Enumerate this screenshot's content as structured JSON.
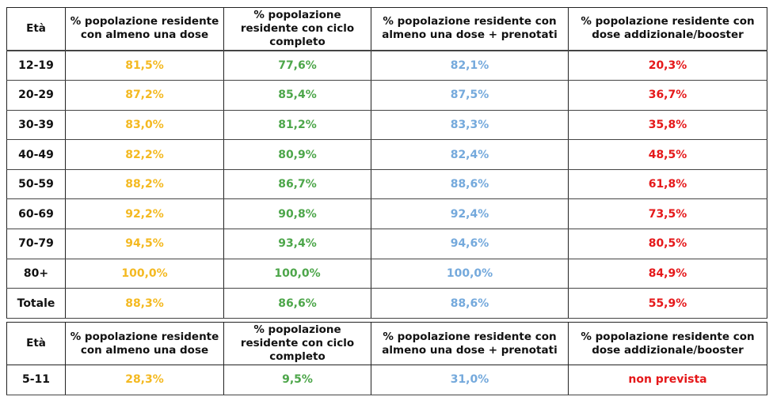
{
  "headers": [
    "Età",
    "% popolazione residente con almeno una dose",
    "% popolazione residente con ciclo completo",
    "% popolazione residente con almeno una dose + prenotati",
    "% popolazione residente con dose addizionale/booster"
  ],
  "colors": {
    "almeno_una_dose": "#f4b921",
    "ciclo_completo": "#4da64a",
    "prenotati": "#74a9dc",
    "booster": "#e5181a"
  },
  "table1": {
    "rows": [
      [
        "12-19",
        "81,5%",
        "77,6%",
        "82,1%",
        "20,3%"
      ],
      [
        "20-29",
        "87,2%",
        "85,4%",
        "87,5%",
        "36,7%"
      ],
      [
        "30-39",
        "83,0%",
        "81,2%",
        "83,3%",
        "35,8%"
      ],
      [
        "40-49",
        "82,2%",
        "80,9%",
        "82,4%",
        "48,5%"
      ],
      [
        "50-59",
        "88,2%",
        "86,7%",
        "88,6%",
        "61,8%"
      ],
      [
        "60-69",
        "92,2%",
        "90,8%",
        "92,4%",
        "73,5%"
      ],
      [
        "70-79",
        "94,5%",
        "93,4%",
        "94,6%",
        "80,5%"
      ],
      [
        "80+",
        "100,0%",
        "100,0%",
        "100,0%",
        "84,9%"
      ],
      [
        "Totale",
        "88,3%",
        "86,6%",
        "88,6%",
        "55,9%"
      ]
    ]
  },
  "table2": {
    "rows": [
      [
        "5-11",
        "28,3%",
        "9,5%",
        "31,0%",
        "non prevista"
      ]
    ]
  }
}
